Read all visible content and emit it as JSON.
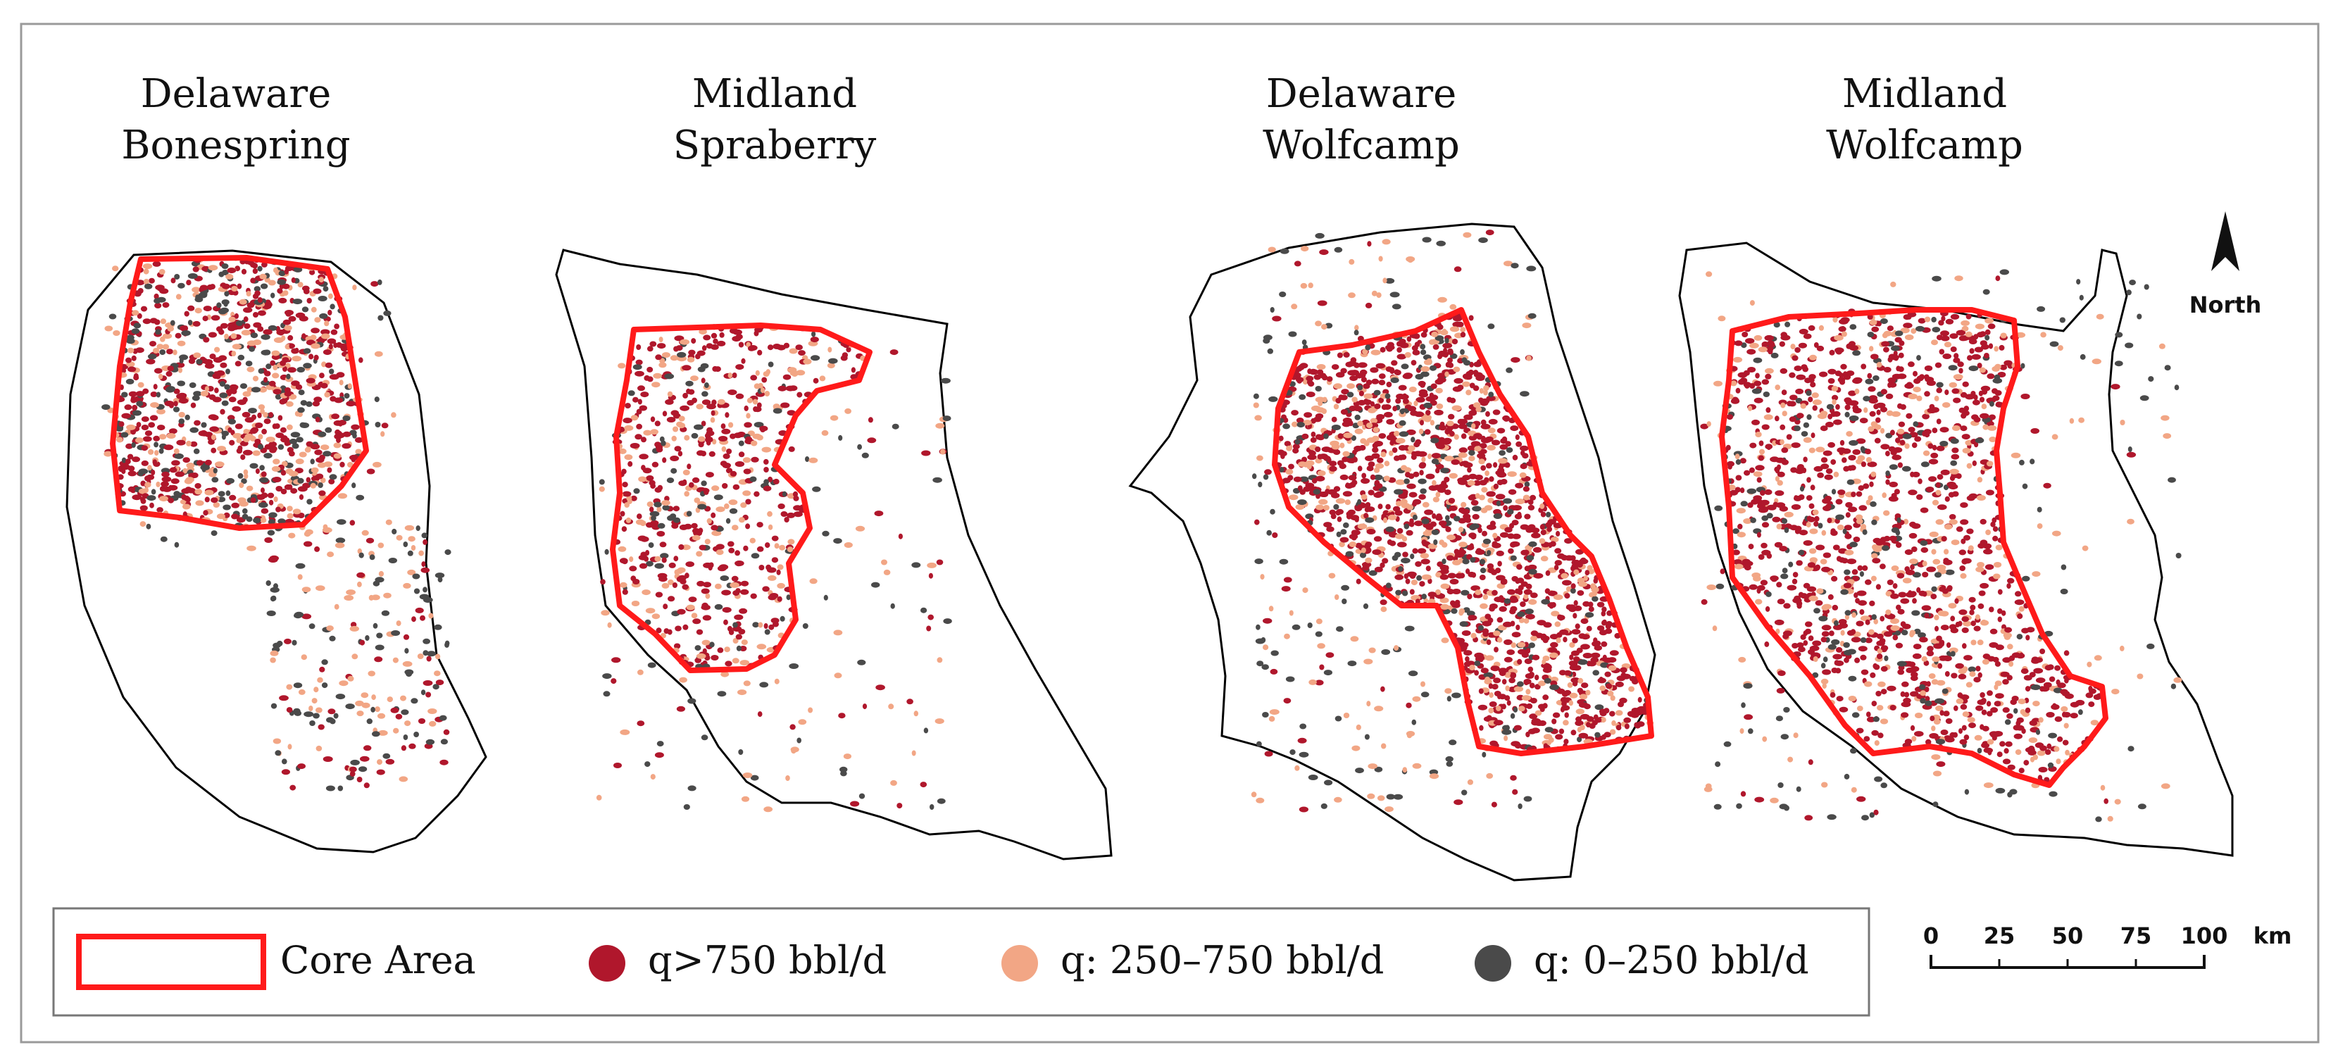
{
  "figure": {
    "panels": [
      {
        "id": "delaware-bonespring",
        "title_line1": "Delaware",
        "title_line2": "Bonespring"
      },
      {
        "id": "midland-spraberry",
        "title_line1": "Midland",
        "title_line2": "Spraberry"
      },
      {
        "id": "delaware-wolfcamp",
        "title_line1": "Delaware",
        "title_line2": "Wolfcamp"
      },
      {
        "id": "midland-wolfcamp",
        "title_line1": "Midland",
        "title_line2": "Wolfcamp"
      }
    ],
    "north_arrow": {
      "label": "North",
      "icon": "north-arrow-icon"
    },
    "scale_bar": {
      "ticks": [
        "0",
        "25",
        "50",
        "75",
        "100"
      ],
      "unit": "km"
    },
    "legend": {
      "core_area": {
        "label": "Core Area",
        "color": "#ff1a1a"
      },
      "high": {
        "label": "q>750 bbl/d",
        "color": "#b0172c"
      },
      "medium": {
        "label": "q: 250–750 bbl/d",
        "color": "#f2a685"
      },
      "low": {
        "label": "q: 0–250 bbl/d",
        "color": "#4a4a4a"
      }
    }
  }
}
